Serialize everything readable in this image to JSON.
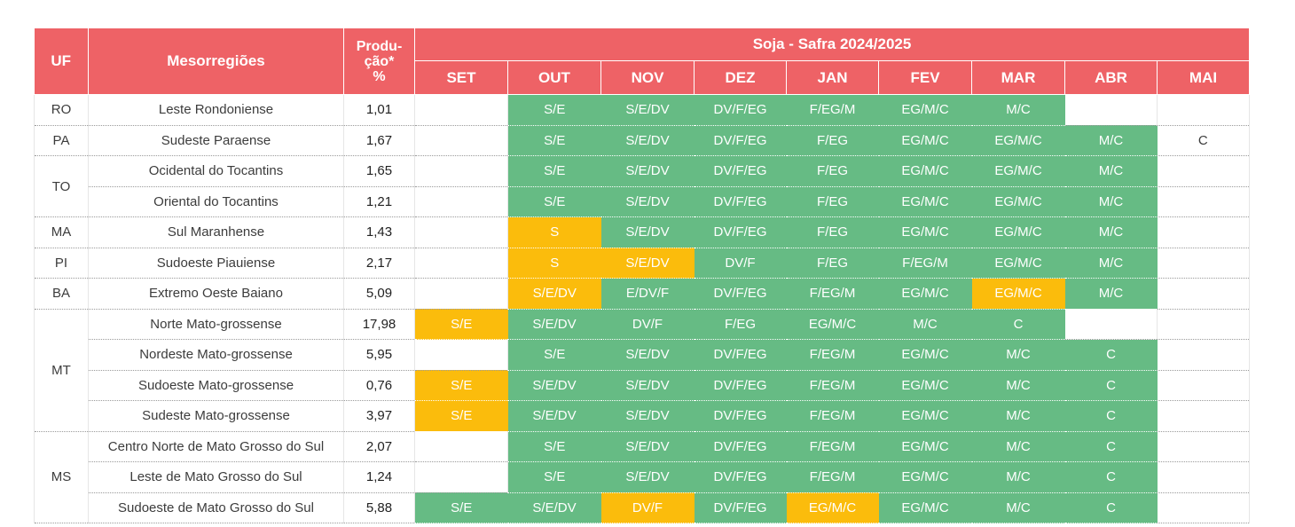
{
  "colors": {
    "header": "#ee6266",
    "green": "#66bb84",
    "yellow": "#fbbc0c"
  },
  "headers": {
    "uf": "UF",
    "meso": "Mesorregiões",
    "prod_line1": "Produ-",
    "prod_line2": "ção*",
    "prod_line3": "%",
    "title": "Soja - Safra 2024/2025"
  },
  "months": [
    "SET",
    "OUT",
    "NOV",
    "DEZ",
    "JAN",
    "FEV",
    "MAR",
    "ABR",
    "MAI"
  ],
  "legend_status": {
    "g": "green",
    "y": "yellow",
    "e": "empty"
  },
  "rows": [
    {
      "uf": "RO",
      "uf_span": 1,
      "meso": "Leste Rondoniense",
      "prod": "1,01",
      "cells": [
        [
          "e",
          ""
        ],
        [
          "g",
          "S/E"
        ],
        [
          "g",
          "S/E/DV"
        ],
        [
          "g",
          "DV/F/EG"
        ],
        [
          "g",
          "F/EG/M"
        ],
        [
          "g",
          "EG/M/C"
        ],
        [
          "g",
          "M/C"
        ],
        [
          "e",
          ""
        ],
        [
          "e",
          ""
        ]
      ]
    },
    {
      "uf": "PA",
      "uf_span": 1,
      "meso": "Sudeste Paraense",
      "prod": "1,67",
      "cells": [
        [
          "e",
          ""
        ],
        [
          "g",
          "S/E"
        ],
        [
          "g",
          "S/E/DV"
        ],
        [
          "g",
          "DV/F/EG"
        ],
        [
          "g",
          "F/EG"
        ],
        [
          "g",
          "EG/M/C"
        ],
        [
          "g",
          "EG/M/C"
        ],
        [
          "g",
          "M/C"
        ],
        [
          "e",
          "C"
        ]
      ]
    },
    {
      "uf": "TO",
      "uf_span": 2,
      "meso": "Ocidental do Tocantins",
      "prod": "1,65",
      "cells": [
        [
          "e",
          ""
        ],
        [
          "g",
          "S/E"
        ],
        [
          "g",
          "S/E/DV"
        ],
        [
          "g",
          "DV/F/EG"
        ],
        [
          "g",
          "F/EG"
        ],
        [
          "g",
          "EG/M/C"
        ],
        [
          "g",
          "EG/M/C"
        ],
        [
          "g",
          "M/C"
        ],
        [
          "e",
          ""
        ]
      ]
    },
    {
      "uf": null,
      "meso": "Oriental do Tocantins",
      "prod": "1,21",
      "cells": [
        [
          "e",
          ""
        ],
        [
          "g",
          "S/E"
        ],
        [
          "g",
          "S/E/DV"
        ],
        [
          "g",
          "DV/F/EG"
        ],
        [
          "g",
          "F/EG"
        ],
        [
          "g",
          "EG/M/C"
        ],
        [
          "g",
          "EG/M/C"
        ],
        [
          "g",
          "M/C"
        ],
        [
          "e",
          ""
        ]
      ]
    },
    {
      "uf": "MA",
      "uf_span": 1,
      "meso": "Sul Maranhense",
      "prod": "1,43",
      "cells": [
        [
          "e",
          ""
        ],
        [
          "y",
          "S"
        ],
        [
          "g",
          "S/E/DV"
        ],
        [
          "g",
          "DV/F/EG"
        ],
        [
          "g",
          "F/EG"
        ],
        [
          "g",
          "EG/M/C"
        ],
        [
          "g",
          "EG/M/C"
        ],
        [
          "g",
          "M/C"
        ],
        [
          "e",
          ""
        ]
      ]
    },
    {
      "uf": "PI",
      "uf_span": 1,
      "meso": "Sudoeste Piauiense",
      "prod": "2,17",
      "cells": [
        [
          "e",
          ""
        ],
        [
          "y",
          "S"
        ],
        [
          "y",
          "S/E/DV"
        ],
        [
          "g",
          "DV/F"
        ],
        [
          "g",
          "F/EG"
        ],
        [
          "g",
          "F/EG/M"
        ],
        [
          "g",
          "EG/M/C"
        ],
        [
          "g",
          "M/C"
        ],
        [
          "e",
          ""
        ]
      ]
    },
    {
      "uf": "BA",
      "uf_span": 1,
      "meso": "Extremo Oeste Baiano",
      "prod": "5,09",
      "cells": [
        [
          "e",
          ""
        ],
        [
          "y",
          "S/E/DV"
        ],
        [
          "g",
          "E/DV/F"
        ],
        [
          "g",
          "DV/F/EG"
        ],
        [
          "g",
          "F/EG/M"
        ],
        [
          "g",
          "EG/M/C"
        ],
        [
          "y",
          "EG/M/C"
        ],
        [
          "g",
          "M/C"
        ],
        [
          "e",
          ""
        ]
      ]
    },
    {
      "uf": "MT",
      "uf_span": 4,
      "meso": "Norte Mato-grossense",
      "prod": "17,98",
      "cells": [
        [
          "y",
          "S/E"
        ],
        [
          "g",
          "S/E/DV"
        ],
        [
          "g",
          "DV/F"
        ],
        [
          "g",
          "F/EG"
        ],
        [
          "g",
          "EG/M/C"
        ],
        [
          "g",
          "M/C"
        ],
        [
          "g",
          "C"
        ],
        [
          "e",
          ""
        ],
        [
          "e",
          ""
        ]
      ]
    },
    {
      "uf": null,
      "meso": "Nordeste Mato-grossense",
      "prod": "5,95",
      "cells": [
        [
          "e",
          ""
        ],
        [
          "g",
          "S/E"
        ],
        [
          "g",
          "S/E/DV"
        ],
        [
          "g",
          "DV/F/EG"
        ],
        [
          "g",
          "F/EG/M"
        ],
        [
          "g",
          "EG/M/C"
        ],
        [
          "g",
          "M/C"
        ],
        [
          "g",
          "C"
        ],
        [
          "e",
          ""
        ]
      ]
    },
    {
      "uf": null,
      "meso": "Sudoeste Mato-grossense",
      "prod": "0,76",
      "cells": [
        [
          "y",
          "S/E"
        ],
        [
          "g",
          "S/E/DV"
        ],
        [
          "g",
          "S/E/DV"
        ],
        [
          "g",
          "DV/F/EG"
        ],
        [
          "g",
          "F/EG/M"
        ],
        [
          "g",
          "EG/M/C"
        ],
        [
          "g",
          "M/C"
        ],
        [
          "g",
          "C"
        ],
        [
          "e",
          ""
        ]
      ]
    },
    {
      "uf": null,
      "meso": "Sudeste Mato-grossense",
      "prod": "3,97",
      "cells": [
        [
          "y",
          "S/E"
        ],
        [
          "g",
          "S/E/DV"
        ],
        [
          "g",
          "S/E/DV"
        ],
        [
          "g",
          "DV/F/EG"
        ],
        [
          "g",
          "F/EG/M"
        ],
        [
          "g",
          "EG/M/C"
        ],
        [
          "g",
          "M/C"
        ],
        [
          "g",
          "C"
        ],
        [
          "e",
          ""
        ]
      ]
    },
    {
      "uf": "MS",
      "uf_span": 3,
      "meso": "Centro Norte de Mato Grosso do Sul",
      "prod": "2,07",
      "cells": [
        [
          "e",
          ""
        ],
        [
          "g",
          "S/E"
        ],
        [
          "g",
          "S/E/DV"
        ],
        [
          "g",
          "DV/F/EG"
        ],
        [
          "g",
          "F/EG/M"
        ],
        [
          "g",
          "EG/M/C"
        ],
        [
          "g",
          "M/C"
        ],
        [
          "g",
          "C"
        ],
        [
          "e",
          ""
        ]
      ]
    },
    {
      "uf": null,
      "meso": "Leste de Mato Grosso do Sul",
      "prod": "1,24",
      "cells": [
        [
          "e",
          ""
        ],
        [
          "g",
          "S/E"
        ],
        [
          "g",
          "S/E/DV"
        ],
        [
          "g",
          "DV/F/EG"
        ],
        [
          "g",
          "F/EG/M"
        ],
        [
          "g",
          "EG/M/C"
        ],
        [
          "g",
          "M/C"
        ],
        [
          "g",
          "C"
        ],
        [
          "e",
          ""
        ]
      ]
    },
    {
      "uf": null,
      "meso": "Sudoeste de Mato Grosso do Sul",
      "prod": "5,88",
      "cells": [
        [
          "g",
          "S/E"
        ],
        [
          "g",
          "S/E/DV"
        ],
        [
          "y",
          "DV/F"
        ],
        [
          "g",
          "DV/F/EG"
        ],
        [
          "y",
          "EG/M/C"
        ],
        [
          "g",
          "EG/M/C"
        ],
        [
          "g",
          "M/C"
        ],
        [
          "g",
          "C"
        ],
        [
          "e",
          ""
        ]
      ]
    }
  ]
}
